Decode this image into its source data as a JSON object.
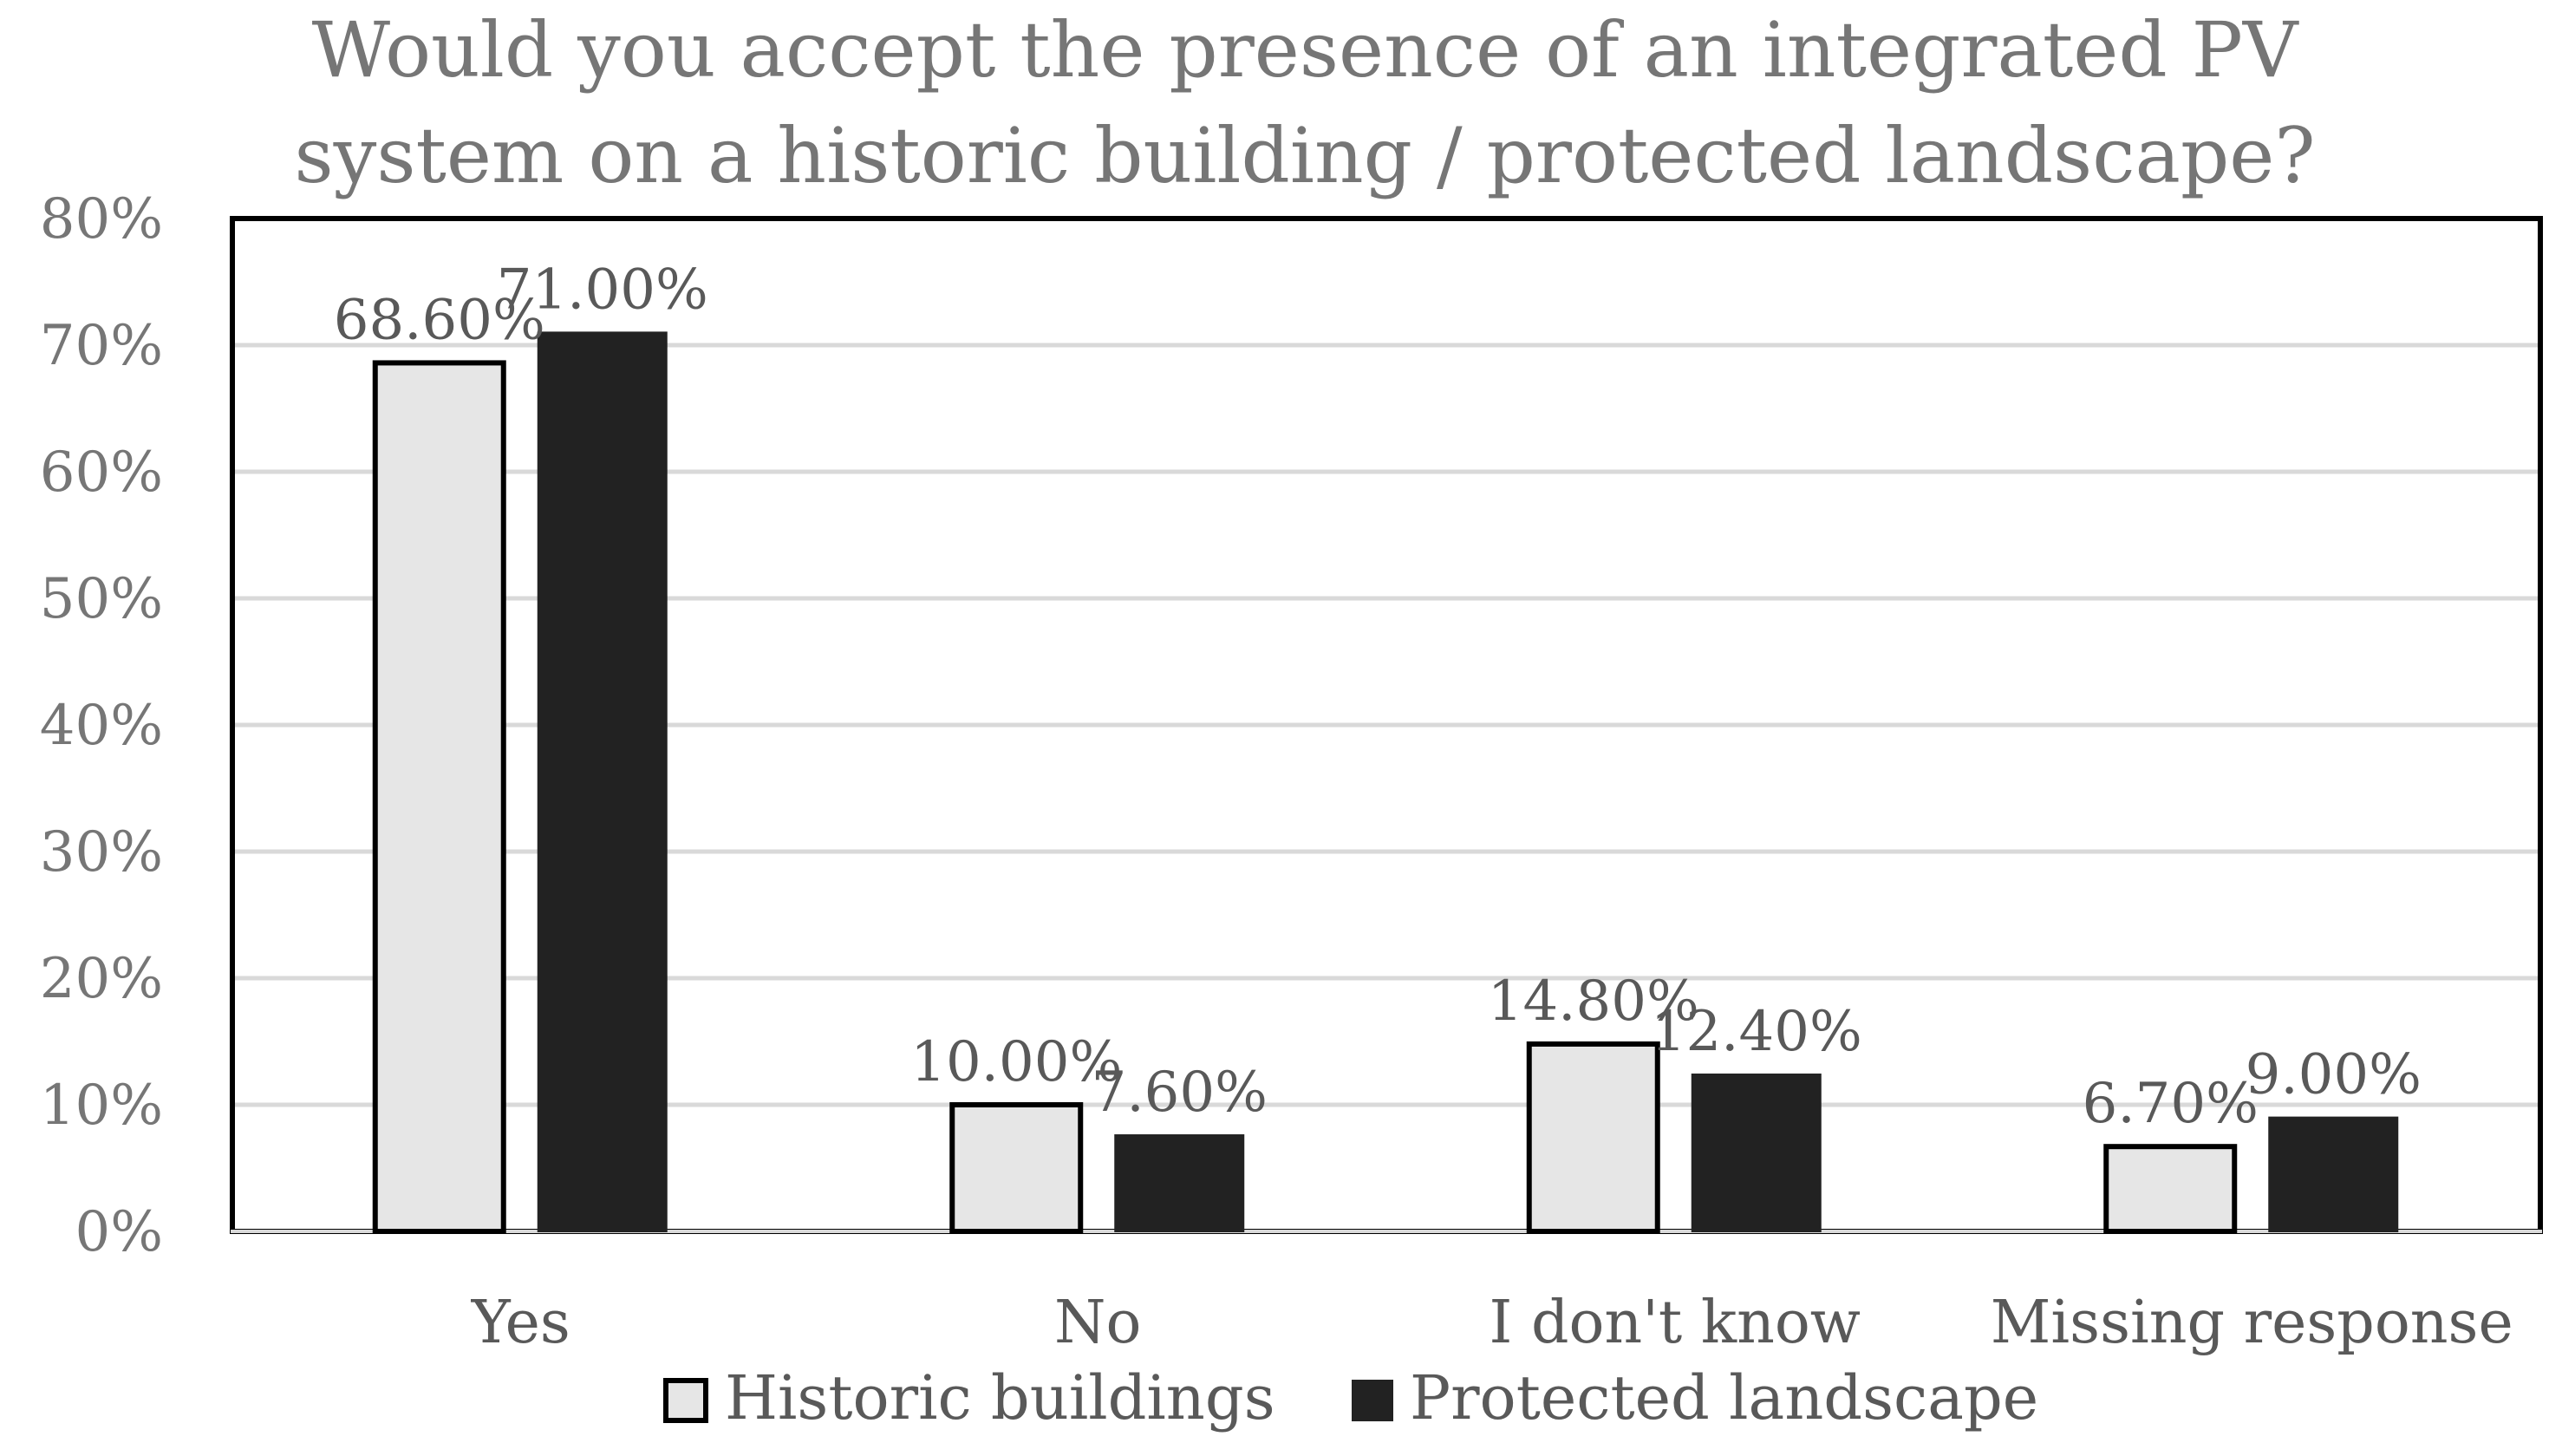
{
  "chart_data": {
    "type": "bar",
    "title": "Would you accept the presence of an integrated PV system on a historic building / protected landscape?",
    "title_lines": [
      "Would you accept the presence of an integrated PV",
      "system on a historic building / protected landscape?"
    ],
    "categories": [
      "Yes",
      "No",
      "I don't know",
      "Missing response"
    ],
    "series": [
      {
        "name": "Historic buildings",
        "color": "#e6e6e6",
        "values": [
          68.6,
          10.0,
          14.8,
          6.7
        ],
        "labels": [
          "68.60%",
          "10.00%",
          "14.80%",
          "6.70%"
        ]
      },
      {
        "name": "Protected landscape",
        "color": "#222222",
        "values": [
          71.0,
          7.6,
          12.4,
          9.0
        ],
        "labels": [
          "71.00%",
          "7.60%",
          "12.40%",
          "9.00%"
        ]
      }
    ],
    "y_ticks": [
      "0%",
      "10%",
      "20%",
      "30%",
      "40%",
      "50%",
      "60%",
      "70%",
      "80%"
    ],
    "ylim": [
      0,
      80
    ],
    "xlabel": "",
    "ylabel": "",
    "grid": true,
    "legend_position": "bottom"
  }
}
